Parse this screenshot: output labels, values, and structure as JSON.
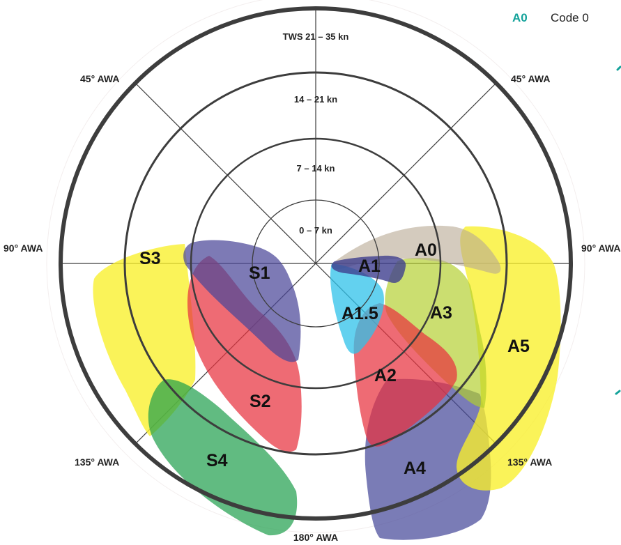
{
  "legend": {
    "code": "A0",
    "name": "Code 0"
  },
  "rings": [
    {
      "label": "0 – 7 kn"
    },
    {
      "label": "7 – 14 kn"
    },
    {
      "label": "14 – 21 kn"
    },
    {
      "label": "TWS 21 – 35  kn"
    }
  ],
  "angles": {
    "top_left": "45° AWA",
    "top_right": "45° AWA",
    "left": "90° AWA",
    "right": "90° AWA",
    "bottom_left": "135° AWA",
    "bottom_right": "135° AWA",
    "bottom": "180° AWA"
  },
  "sails": {
    "s1": "S1",
    "s2": "S2",
    "s3": "S3",
    "s4": "S4",
    "a0": "A0",
    "a1": "A1",
    "a15": "A1.5",
    "a2": "A2",
    "a3": "A3",
    "a4": "A4",
    "a5": "A5"
  },
  "colors": {
    "s1": "#4b4699",
    "s2": "#e8323f",
    "s3": "#f8ef2a",
    "s4": "#1e9e4c",
    "a0": "#b8a893",
    "a1": "#3e3f8f",
    "a15": "#2fc1ea",
    "a2": "#e8323f",
    "a3": "#b3cf2c",
    "a4": "#464a9a",
    "a5": "#f8ef2a",
    "outline": "#3d3d3d",
    "accent": "#13a29a"
  }
}
